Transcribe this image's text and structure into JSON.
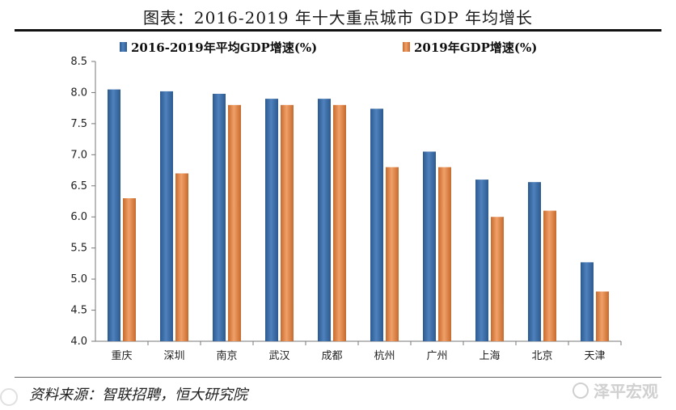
{
  "page": {
    "title": "图表：2016-2019 年十大重点城市 GDP 年均增长",
    "source": "资料来源：智联招聘，恒大研究院",
    "watermark": "泽平宏观"
  },
  "colors": {
    "series1": "#4f81bd",
    "series1_dark": "#2c5a8f",
    "series2": "#f0a068",
    "series2_dark": "#c76a2e"
  },
  "chart_data": {
    "type": "bar",
    "categories": [
      "重庆",
      "深圳",
      "南京",
      "武汉",
      "成都",
      "杭州",
      "广州",
      "上海",
      "北京",
      "天津"
    ],
    "series": [
      {
        "name": "2016-2019年平均GDP增速(%)",
        "values": [
          8.05,
          8.02,
          7.98,
          7.9,
          7.9,
          7.74,
          7.05,
          6.6,
          6.56,
          5.27
        ]
      },
      {
        "name": "2019年GDP增速(%)",
        "values": [
          6.3,
          6.7,
          7.8,
          7.8,
          7.8,
          6.8,
          6.8,
          6.0,
          6.1,
          4.8
        ]
      }
    ],
    "ylim": [
      4.0,
      8.5
    ],
    "yticks": [
      "4.0",
      "4.5",
      "5.0",
      "5.5",
      "6.0",
      "6.5",
      "7.0",
      "7.5",
      "8.0",
      "8.5"
    ],
    "legend": "top",
    "grid": false
  }
}
